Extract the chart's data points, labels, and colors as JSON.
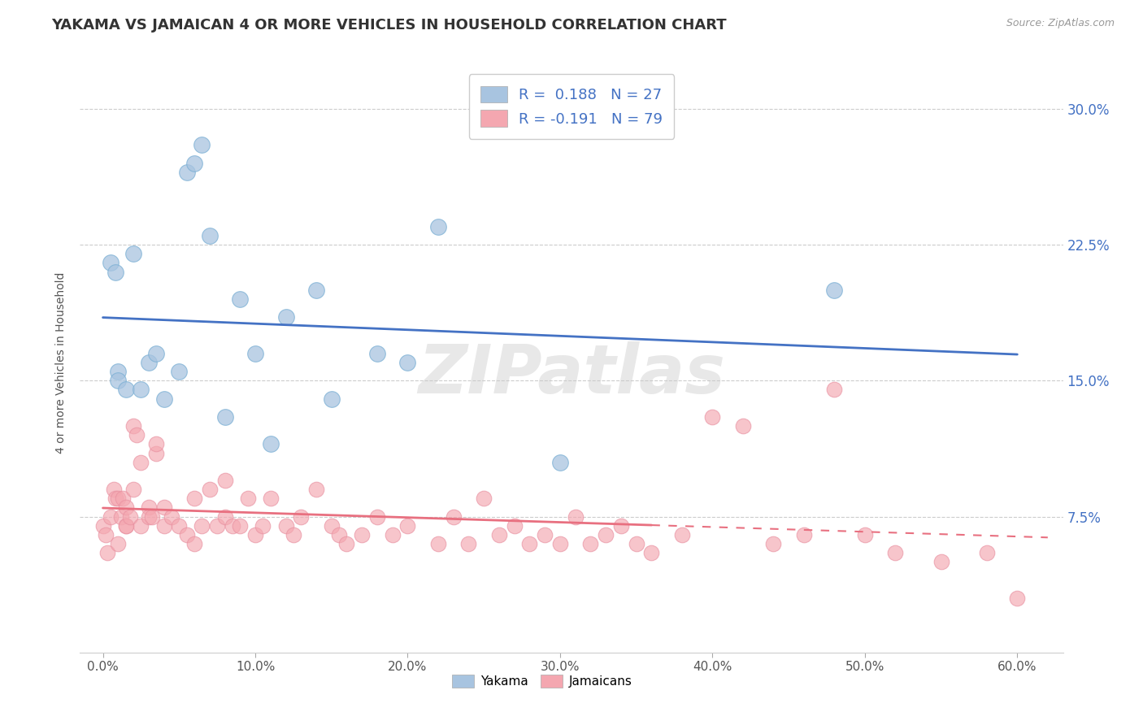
{
  "title": "YAKAMA VS JAMAICAN 4 OR MORE VEHICLES IN HOUSEHOLD CORRELATION CHART",
  "source_text": "Source: ZipAtlas.com",
  "ylabel": "4 or more Vehicles in Household",
  "xlabel_ticks": [
    "0.0%",
    "10.0%",
    "20.0%",
    "30.0%",
    "40.0%",
    "50.0%",
    "60.0%"
  ],
  "xlabel_vals": [
    0.0,
    10.0,
    20.0,
    30.0,
    40.0,
    50.0,
    60.0
  ],
  "ytick_labels": [
    "7.5%",
    "15.0%",
    "22.5%",
    "30.0%"
  ],
  "ytick_vals": [
    7.5,
    15.0,
    22.5,
    30.0
  ],
  "xlim": [
    -1.5,
    63
  ],
  "ylim": [
    0,
    32
  ],
  "yakama_R": 0.188,
  "yakama_N": 27,
  "jamaican_R": -0.191,
  "jamaican_N": 79,
  "legend_label1": "Yakama",
  "legend_label2": "Jamaicans",
  "yakama_color": "#a8c4e0",
  "jamaican_color": "#f4a7b0",
  "yakama_line_color": "#4472c4",
  "jamaican_line_color": "#e87080",
  "watermark": "ZIPatlas",
  "yakama_x": [
    0.5,
    0.8,
    1.0,
    1.0,
    1.5,
    2.0,
    2.5,
    3.0,
    3.5,
    4.0,
    5.0,
    5.5,
    6.0,
    6.5,
    7.0,
    8.0,
    9.0,
    10.0,
    11.0,
    12.0,
    14.0,
    15.0,
    18.0,
    20.0,
    22.0,
    30.0,
    48.0
  ],
  "yakama_y": [
    21.5,
    21.0,
    15.5,
    15.0,
    14.5,
    22.0,
    14.5,
    16.0,
    16.5,
    14.0,
    15.5,
    26.5,
    27.0,
    28.0,
    23.0,
    13.0,
    19.5,
    16.5,
    11.5,
    18.5,
    20.0,
    14.0,
    16.5,
    16.0,
    23.5,
    10.5,
    20.0
  ],
  "jamaican_x": [
    0.0,
    0.2,
    0.3,
    0.5,
    0.7,
    0.8,
    1.0,
    1.0,
    1.2,
    1.3,
    1.5,
    1.5,
    1.5,
    1.8,
    2.0,
    2.0,
    2.2,
    2.5,
    2.5,
    3.0,
    3.0,
    3.2,
    3.5,
    3.5,
    4.0,
    4.0,
    4.5,
    5.0,
    5.5,
    6.0,
    6.0,
    6.5,
    7.0,
    7.5,
    8.0,
    8.0,
    8.5,
    9.0,
    9.5,
    10.0,
    10.5,
    11.0,
    12.0,
    12.5,
    13.0,
    14.0,
    15.0,
    15.5,
    16.0,
    17.0,
    18.0,
    19.0,
    20.0,
    22.0,
    23.0,
    24.0,
    25.0,
    26.0,
    27.0,
    28.0,
    29.0,
    30.0,
    31.0,
    32.0,
    33.0,
    34.0,
    35.0,
    36.0,
    38.0,
    40.0,
    42.0,
    44.0,
    46.0,
    48.0,
    50.0,
    52.0,
    55.0,
    58.0,
    60.0
  ],
  "jamaican_y": [
    7.0,
    6.5,
    5.5,
    7.5,
    9.0,
    8.5,
    6.0,
    8.5,
    7.5,
    8.5,
    7.0,
    8.0,
    7.0,
    7.5,
    12.5,
    9.0,
    12.0,
    7.0,
    10.5,
    8.0,
    7.5,
    7.5,
    11.0,
    11.5,
    8.0,
    7.0,
    7.5,
    7.0,
    6.5,
    8.5,
    6.0,
    7.0,
    9.0,
    7.0,
    7.5,
    9.5,
    7.0,
    7.0,
    8.5,
    6.5,
    7.0,
    8.5,
    7.0,
    6.5,
    7.5,
    9.0,
    7.0,
    6.5,
    6.0,
    6.5,
    7.5,
    6.5,
    7.0,
    6.0,
    7.5,
    6.0,
    8.5,
    6.5,
    7.0,
    6.0,
    6.5,
    6.0,
    7.5,
    6.0,
    6.5,
    7.0,
    6.0,
    5.5,
    6.5,
    13.0,
    12.5,
    6.0,
    6.5,
    14.5,
    6.5,
    5.5,
    5.0,
    5.5,
    3.0
  ],
  "jamaican_solid_end_x": 36.0,
  "title_fontsize": 13,
  "legend_fontsize": 13
}
